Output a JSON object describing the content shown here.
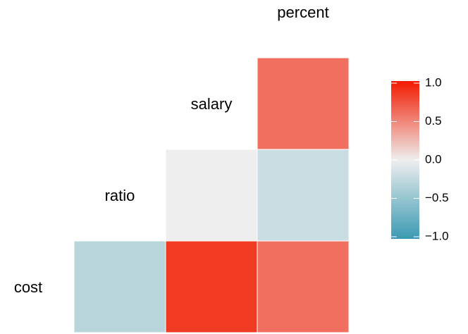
{
  "chart_data": {
    "type": "heatmap",
    "variables": [
      "cost",
      "ratio",
      "salary",
      "percent"
    ],
    "values": [
      [
        null,
        -0.3,
        0.85,
        0.6
      ],
      [
        null,
        null,
        0.0,
        -0.2
      ],
      [
        null,
        null,
        null,
        0.6
      ],
      [
        null,
        null,
        null,
        null
      ]
    ],
    "colors": [
      "#3B9AB2",
      "#EEEEEE",
      "#F21A00"
    ],
    "clim": [
      -1,
      1
    ],
    "cticks": [
      {
        "value": 1,
        "label": "1.0"
      },
      {
        "value": 0.5,
        "label": "0.5"
      },
      {
        "value": 0,
        "label": "0.0"
      },
      {
        "value": -0.5,
        "label": "−0.5"
      },
      {
        "value": -1,
        "label": "−1.0"
      }
    ]
  }
}
